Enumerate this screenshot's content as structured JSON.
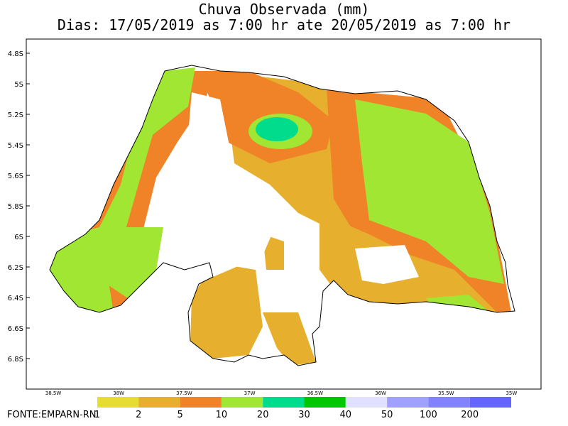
{
  "title": "Chuva Observada (mm)",
  "subtitle": "Dias: 17/05/2019 as 7:00 hr ate 20/05/2019 as 7:00 hr",
  "lat_labels": [
    "4.8S",
    "5S",
    "5.2S",
    "5.4S",
    "5.6S",
    "5.8S",
    "6S",
    "6.2S",
    "6.4S",
    "6.6S",
    "6.8S"
  ],
  "lon_labels": [
    "38.5W",
    "38W",
    "37.5W",
    "37W",
    "36.5W",
    "36W",
    "35.5W",
    "35W"
  ],
  "legend": {
    "labels": [
      "1",
      "2",
      "5",
      "10",
      "20",
      "30",
      "40",
      "50",
      "100",
      "200"
    ],
    "colors": [
      "#e6dc32",
      "#e6af2d",
      "#f08228",
      "#a0e632",
      "#00dc8c",
      "#00c800",
      "#e1e1ff",
      "#a0a0ff",
      "#8282ff",
      "#6464ff"
    ]
  },
  "source": "FONTE:EMPARN-RN"
}
